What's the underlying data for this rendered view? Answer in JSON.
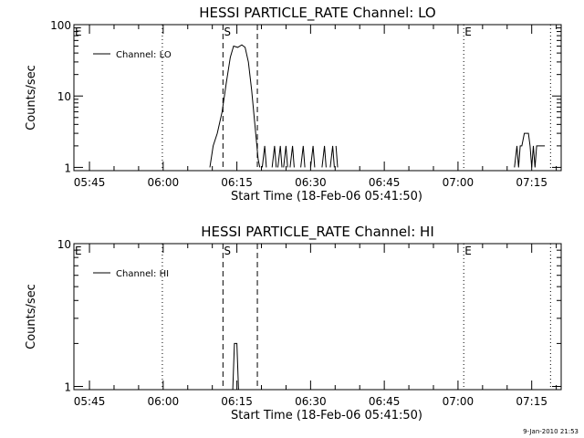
{
  "footer": {
    "timestamp": "9-Jan-2010 21:53"
  },
  "chart_data": [
    {
      "type": "line",
      "title": "HESSI PARTICLE_RATE Channel: LO",
      "xlabel": "Start Time (18-Feb-06 05:41:50)",
      "ylabel": "Counts/sec",
      "y_scale": "log",
      "xlim": [
        "05:41:50",
        "07:21:00"
      ],
      "ylim": [
        0.9,
        100
      ],
      "x_ticks": [
        "05:45",
        "06:00",
        "06:15",
        "06:30",
        "06:45",
        "07:00",
        "07:15"
      ],
      "y_ticks": [
        {
          "v": 1,
          "label": "1"
        },
        {
          "v": 10,
          "label": "10"
        },
        {
          "v": 100,
          "label": "100"
        }
      ],
      "grid": false,
      "legend": {
        "position": "top-left",
        "entries": [
          "Channel: LO"
        ]
      },
      "markers": [
        {
          "label": "E",
          "time": "05:41:50",
          "style": "none"
        },
        {
          "label": "",
          "time": "05:59:50",
          "style": "dotted"
        },
        {
          "label": "S",
          "time": "06:12:10",
          "style": "dashed"
        },
        {
          "label": "",
          "time": "06:19:10",
          "style": "dashed"
        },
        {
          "label": "E",
          "time": "07:01:10",
          "style": "dotted"
        },
        {
          "label": "",
          "time": "07:18:50",
          "style": "dotted"
        }
      ],
      "series": [
        {
          "segments": [
            [
              [
                "06:09:30",
                1
              ],
              [
                "06:10:10",
                2
              ],
              [
                "06:11:00",
                3
              ],
              [
                "06:12:00",
                6
              ],
              [
                "06:12:50",
                15
              ],
              [
                "06:13:40",
                35
              ],
              [
                "06:14:20",
                50
              ],
              [
                "06:15:10",
                48
              ],
              [
                "06:16:00",
                52
              ],
              [
                "06:16:40",
                48
              ],
              [
                "06:17:20",
                30
              ],
              [
                "06:18:00",
                12
              ],
              [
                "06:18:40",
                4
              ],
              [
                "06:19:20",
                1.3
              ],
              [
                "06:19:40",
                1
              ]
            ],
            [
              [
                "06:20:10",
                1
              ],
              [
                "06:20:40",
                2
              ],
              [
                "06:21:00",
                1
              ]
            ],
            [
              [
                "06:22:10",
                1
              ],
              [
                "06:22:40",
                2
              ],
              [
                "06:23:00",
                1
              ]
            ],
            [
              [
                "06:23:20",
                1
              ],
              [
                "06:23:50",
                2
              ],
              [
                "06:24:10",
                1
              ]
            ],
            [
              [
                "06:24:30",
                1
              ],
              [
                "06:25:00",
                2
              ],
              [
                "06:25:20",
                1
              ]
            ],
            [
              [
                "06:25:50",
                1
              ],
              [
                "06:26:20",
                2
              ],
              [
                "06:26:40",
                1
              ]
            ],
            [
              [
                "06:28:00",
                1
              ],
              [
                "06:28:30",
                2
              ],
              [
                "06:28:50",
                1
              ]
            ],
            [
              [
                "06:30:00",
                1
              ],
              [
                "06:30:30",
                2
              ],
              [
                "06:30:50",
                1
              ]
            ],
            [
              [
                "06:32:20",
                1
              ],
              [
                "06:32:50",
                2
              ],
              [
                "06:33:10",
                1
              ]
            ],
            [
              [
                "06:34:00",
                1
              ],
              [
                "06:34:30",
                2
              ],
              [
                "06:34:50",
                1
              ]
            ],
            [
              [
                "06:35:10",
                2
              ],
              [
                "06:35:30",
                1
              ]
            ],
            [
              [
                "07:11:30",
                1
              ],
              [
                "07:12:00",
                2
              ],
              [
                "07:12:20",
                1
              ],
              [
                "07:12:40",
                2
              ],
              [
                "07:13:00",
                2
              ],
              [
                "07:13:30",
                3
              ],
              [
                "07:14:20",
                3
              ],
              [
                "07:14:40",
                2
              ],
              [
                "07:15:00",
                1
              ],
              [
                "07:15:20",
                2
              ],
              [
                "07:15:40",
                1
              ],
              [
                "07:16:00",
                2
              ],
              [
                "07:17:40",
                2
              ]
            ]
          ]
        }
      ]
    },
    {
      "type": "line",
      "title": "HESSI PARTICLE_RATE Channel: HI",
      "xlabel": "Start Time (18-Feb-06 05:41:50)",
      "ylabel": "Counts/sec",
      "y_scale": "log",
      "xlim": [
        "05:41:50",
        "07:21:00"
      ],
      "ylim": [
        0.95,
        10
      ],
      "x_ticks": [
        "05:45",
        "06:00",
        "06:15",
        "06:30",
        "06:45",
        "07:00",
        "07:15"
      ],
      "y_ticks": [
        {
          "v": 1,
          "label": "1"
        },
        {
          "v": 10,
          "label": "10"
        }
      ],
      "grid": false,
      "legend": {
        "position": "top-left",
        "entries": [
          "Channel: HI"
        ]
      },
      "markers": [
        {
          "label": "E",
          "time": "05:41:50",
          "style": "none"
        },
        {
          "label": "",
          "time": "05:59:50",
          "style": "dotted"
        },
        {
          "label": "S",
          "time": "06:12:10",
          "style": "dashed"
        },
        {
          "label": "",
          "time": "06:19:10",
          "style": "dashed"
        },
        {
          "label": "E",
          "time": "07:01:10",
          "style": "dotted"
        },
        {
          "label": "",
          "time": "07:18:50",
          "style": "dotted"
        }
      ],
      "series": [
        {
          "segments": [
            [
              [
                "06:14:10",
                0.95
              ],
              [
                "06:14:30",
                2
              ],
              [
                "06:15:00",
                2
              ],
              [
                "06:15:20",
                0.95
              ]
            ]
          ]
        }
      ]
    }
  ]
}
